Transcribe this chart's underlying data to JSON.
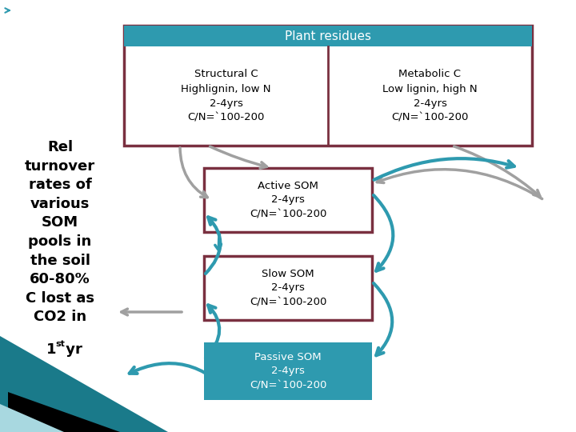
{
  "background_color": "#ffffff",
  "teal_color": "#2e9aaf",
  "border_color": "#7a3040",
  "passive_fill": "#2e9aaf",
  "arrow_teal": "#2e9aaf",
  "arrow_gray": "#a0a0a0",
  "title_text": "Plant residues",
  "structural_text": "Structural C\nHighlignin, low N\n2-4yrs\nC/N=`100-200",
  "metabolic_text": "Metabolic C\nLow lignin, high N\n2-4yrs\nC/N=`100-200",
  "active_text": "Active SOM\n2-4yrs\nC/N=`100-200",
  "slow_text": "Slow SOM\n2-4yrs\nC/N=`100-200",
  "passive_text": "Passive SOM\n2-4yrs\nC/N=`100-200",
  "tri1_color": "#1a7a8a",
  "tri2_color": "#000000",
  "tri3_color": "#a8d8e0"
}
